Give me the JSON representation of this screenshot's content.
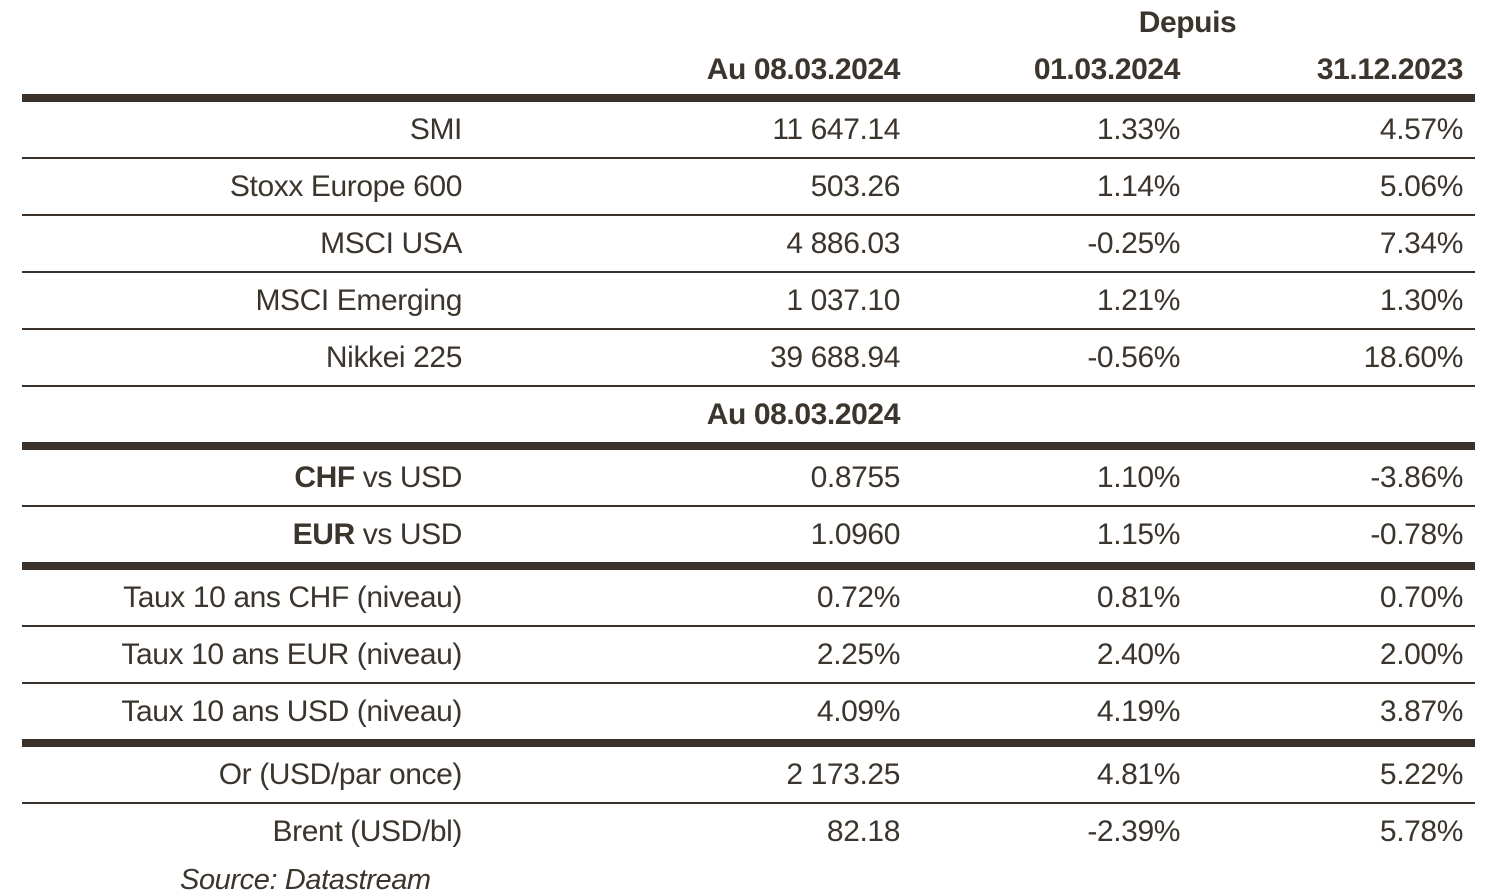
{
  "colors": {
    "text": "#3b352d",
    "rule": "#39312a",
    "background": "#ffffff"
  },
  "table": {
    "depuis_label": "Depuis",
    "columns": [
      "Au 08.03.2024",
      "01.03.2024",
      "31.12.2023"
    ],
    "rows": [
      {
        "label_bold": "",
        "label": "SMI",
        "values": [
          "11 647.14",
          "1.33%",
          "4.57%"
        ],
        "rule": "thin",
        "section": false
      },
      {
        "label_bold": "",
        "label": "Stoxx Europe 600",
        "values": [
          "503.26",
          "1.14%",
          "5.06%"
        ],
        "rule": "thin",
        "section": false
      },
      {
        "label_bold": "",
        "label": "MSCI USA",
        "values": [
          "4 886.03",
          "-0.25%",
          "7.34%"
        ],
        "rule": "thin",
        "section": false
      },
      {
        "label_bold": "",
        "label": "MSCI Emerging",
        "values": [
          "1 037.10",
          "1.21%",
          "1.30%"
        ],
        "rule": "thin",
        "section": false
      },
      {
        "label_bold": "",
        "label": "Nikkei 225",
        "values": [
          "39 688.94",
          "-0.56%",
          "18.60%"
        ],
        "rule": "thin",
        "section": false
      },
      {
        "label_bold": "",
        "label": "",
        "values": [
          "Au 08.03.2024",
          "",
          ""
        ],
        "rule": "thick",
        "section": true
      },
      {
        "label_bold": "CHF",
        "label": " vs USD",
        "values": [
          "0.8755",
          "1.10%",
          "-3.86%"
        ],
        "rule": "thin",
        "section": false
      },
      {
        "label_bold": "EUR",
        "label": " vs USD",
        "values": [
          "1.0960",
          "1.15%",
          "-0.78%"
        ],
        "rule": "thick",
        "section": false
      },
      {
        "label_bold": "",
        "label": "Taux 10 ans CHF (niveau)",
        "values": [
          "0.72%",
          "0.81%",
          "0.70%"
        ],
        "rule": "thin",
        "section": false
      },
      {
        "label_bold": "",
        "label": "Taux 10 ans EUR (niveau)",
        "values": [
          "2.25%",
          "2.40%",
          "2.00%"
        ],
        "rule": "thin",
        "section": false
      },
      {
        "label_bold": "",
        "label": "Taux 10 ans USD (niveau)",
        "values": [
          "4.09%",
          "4.19%",
          "3.87%"
        ],
        "rule": "thick",
        "section": false
      },
      {
        "label_bold": "",
        "label": "Or (USD/par once)",
        "values": [
          "2 173.25",
          "4.81%",
          "5.22%"
        ],
        "rule": "thin",
        "section": false
      },
      {
        "label_bold": "",
        "label": "Brent (USD/bl)",
        "values": [
          "82.18",
          "-2.39%",
          "5.78%"
        ],
        "rule": "none",
        "section": false
      }
    ],
    "source": "Source: Datastream"
  },
  "chart_data": {
    "type": "table",
    "title": "",
    "columns": [
      "",
      "Au 08.03.2024",
      "Depuis 01.03.2024",
      "Depuis 31.12.2023"
    ],
    "rows": [
      [
        "SMI",
        "11 647.14",
        "1.33%",
        "4.57%"
      ],
      [
        "Stoxx Europe 600",
        "503.26",
        "1.14%",
        "5.06%"
      ],
      [
        "MSCI USA",
        "4 886.03",
        "-0.25%",
        "7.34%"
      ],
      [
        "MSCI Emerging",
        "1 037.10",
        "1.21%",
        "1.30%"
      ],
      [
        "Nikkei 225",
        "39 688.94",
        "-0.56%",
        "18.60%"
      ],
      [
        "CHF vs USD",
        "0.8755",
        "1.10%",
        "-3.86%"
      ],
      [
        "EUR vs USD",
        "1.0960",
        "1.15%",
        "-0.78%"
      ],
      [
        "Taux 10 ans CHF (niveau)",
        "0.72%",
        "0.81%",
        "0.70%"
      ],
      [
        "Taux 10 ans EUR (niveau)",
        "2.25%",
        "2.40%",
        "2.00%"
      ],
      [
        "Taux 10 ans USD (niveau)",
        "4.09%",
        "4.19%",
        "3.87%"
      ],
      [
        "Or (USD/par once)",
        "2 173.25",
        "4.81%",
        "5.22%"
      ],
      [
        "Brent (USD/bl)",
        "82.18",
        "-2.39%",
        "5.78%"
      ]
    ],
    "source": "Source: Datastream"
  }
}
